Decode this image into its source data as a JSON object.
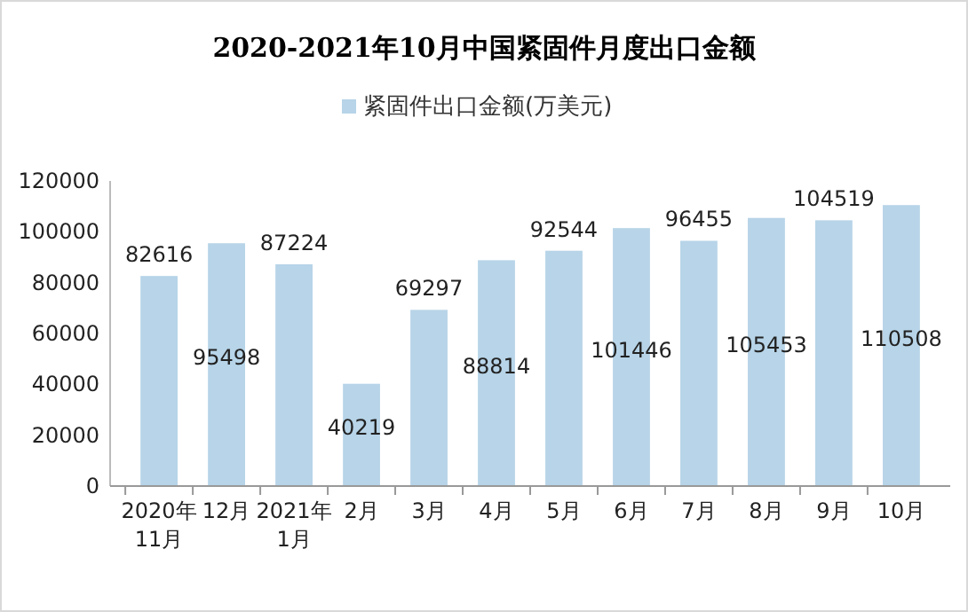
{
  "chart_data": {
    "type": "bar",
    "title": "2020-2021年10月中国紧固件月度出口金额",
    "categories": [
      "2020年\n11月",
      "12月",
      "2021年\n1月",
      "2月",
      "3月",
      "4月",
      "5月",
      "6月",
      "7月",
      "8月",
      "9月",
      "10月"
    ],
    "series": [
      {
        "name": "紧固件出口金额(万美元)",
        "color": "#b7d4e8",
        "values": [
          82616,
          95498,
          87224,
          40219,
          69297,
          88814,
          92544,
          101446,
          96455,
          105453,
          104519,
          110508
        ]
      }
    ],
    "ylim": [
      0,
      120000
    ],
    "yticks": [
      0,
      20000,
      40000,
      60000,
      80000,
      100000,
      120000
    ],
    "grid": false,
    "legend": "top",
    "data_labels": true
  }
}
